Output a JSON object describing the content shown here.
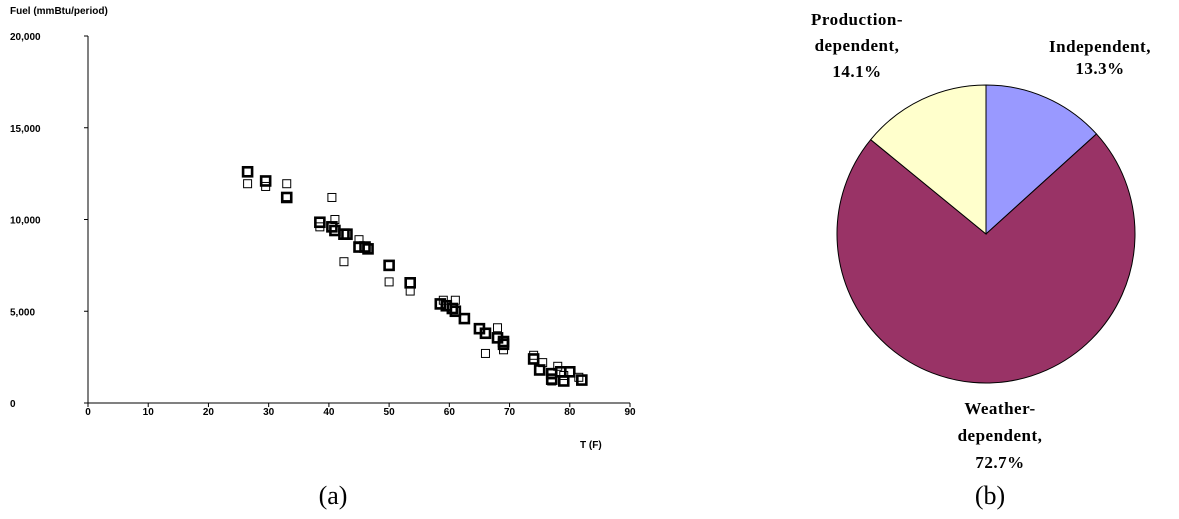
{
  "chart_data": [
    {
      "type": "scatter",
      "ylabel": "Fuel (mmBtu/period)",
      "xlabel": "T (F)",
      "xlim": [
        0,
        90
      ],
      "ylim": [
        0,
        20000
      ],
      "x_ticks": [
        0,
        10,
        20,
        30,
        40,
        50,
        60,
        70,
        80,
        90
      ],
      "y_ticks": [
        0,
        5000,
        10000,
        15000,
        20000
      ],
      "y_tick_labels": [
        "0",
        "5,000",
        "10,000",
        "15,000",
        "20,000"
      ],
      "x_tick_labels": [
        "0",
        "10",
        "20",
        "30",
        "40",
        "50",
        "60",
        "70",
        "80",
        "90"
      ],
      "grid": false,
      "caption": "(a)",
      "series": [
        {
          "points": [
            [
              26.5,
              12600
            ],
            [
              29.5,
              12100
            ],
            [
              33,
              11200
            ],
            [
              38.5,
              9850
            ],
            [
              40.5,
              9600
            ],
            [
              41,
              9400
            ],
            [
              42.5,
              9200
            ],
            [
              43,
              9200
            ],
            [
              45,
              8500
            ],
            [
              46,
              8500
            ],
            [
              46.5,
              8400
            ],
            [
              50,
              7500
            ],
            [
              53.5,
              6550
            ],
            [
              58.5,
              5400
            ],
            [
              59.5,
              5300
            ],
            [
              60.5,
              5150
            ],
            [
              61,
              5000
            ],
            [
              62.5,
              4600
            ],
            [
              65,
              4050
            ],
            [
              66,
              3800
            ],
            [
              68,
              3550
            ],
            [
              69,
              3350
            ],
            [
              69,
              3200
            ],
            [
              74,
              2400
            ],
            [
              75,
              1800
            ],
            [
              77,
              1600
            ],
            [
              77,
              1300
            ],
            [
              78.5,
              1700
            ],
            [
              79,
              1200
            ],
            [
              80,
              1700
            ],
            [
              82,
              1250
            ]
          ]
        },
        {
          "points": [
            [
              26.5,
              11950
            ],
            [
              29.5,
              11800
            ],
            [
              33,
              11950
            ],
            [
              33,
              11250
            ],
            [
              38.5,
              9600
            ],
            [
              40.5,
              11200
            ],
            [
              41,
              10000
            ],
            [
              42.5,
              7700
            ],
            [
              45,
              8900
            ],
            [
              50,
              6600
            ],
            [
              53.5,
              6100
            ],
            [
              59,
              5600
            ],
            [
              61,
              5600
            ],
            [
              66,
              2700
            ],
            [
              68,
              4100
            ],
            [
              69,
              2900
            ],
            [
              74,
              2600
            ],
            [
              75.5,
              2200
            ],
            [
              77,
              1200
            ],
            [
              78,
              2000
            ],
            [
              79,
              1500
            ],
            [
              81.5,
              1400
            ]
          ]
        }
      ]
    },
    {
      "type": "pie",
      "caption": "(b)",
      "slices": [
        {
          "label_lines": [
            "Independent,",
            "13.3%"
          ],
          "value": 13.3,
          "color": "#9999FF"
        },
        {
          "label_lines": [
            "Weather-",
            "dependent,",
            "72.7%"
          ],
          "value": 72.7,
          "color": "#993366"
        },
        {
          "label_lines": [
            "Production-",
            "dependent,",
            "14.1%"
          ],
          "value": 14.1,
          "color": "#FFFFCC"
        }
      ]
    }
  ]
}
